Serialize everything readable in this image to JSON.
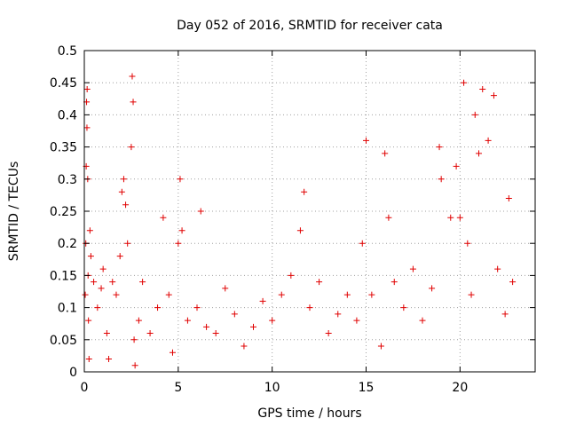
{
  "chart_data": {
    "type": "scatter",
    "title": "Day 052 of 2016, SRMTID for receiver cata",
    "xlabel": "GPS time / hours",
    "ylabel": "SRMTID / TECUs",
    "xlim": [
      0,
      24
    ],
    "ylim": [
      0,
      0.5
    ],
    "x_ticks": [
      0,
      5,
      10,
      15,
      20
    ],
    "x_tick_labels": [
      "0",
      "5",
      "10",
      "15",
      "20"
    ],
    "y_ticks": [
      0,
      0.05,
      0.1,
      0.15,
      0.2,
      0.25,
      0.3,
      0.35,
      0.4,
      0.45,
      0.5
    ],
    "y_tick_labels": [
      "0",
      "0.05",
      "0.1",
      "0.15",
      "0.2",
      "0.25",
      "0.3",
      "0.35",
      "0.4",
      "0.45",
      "0.5"
    ],
    "grid": true,
    "marker": "+",
    "marker_color": "#e00000",
    "series": [
      {
        "name": "SRMTID",
        "sample_points": [
          [
            0.05,
            0.12
          ],
          [
            0.08,
            0.2
          ],
          [
            0.1,
            0.32
          ],
          [
            0.12,
            0.42
          ],
          [
            0.14,
            0.38
          ],
          [
            0.15,
            0.44
          ],
          [
            0.18,
            0.3
          ],
          [
            0.2,
            0.15
          ],
          [
            0.22,
            0.08
          ],
          [
            0.25,
            0.02
          ],
          [
            0.3,
            0.22
          ],
          [
            0.35,
            0.18
          ],
          [
            0.5,
            0.14
          ],
          [
            0.7,
            0.1
          ],
          [
            0.9,
            0.13
          ],
          [
            1.0,
            0.16
          ],
          [
            1.2,
            0.06
          ],
          [
            1.3,
            0.02
          ],
          [
            1.5,
            0.14
          ],
          [
            1.7,
            0.12
          ],
          [
            1.9,
            0.18
          ],
          [
            2.0,
            0.28
          ],
          [
            2.1,
            0.3
          ],
          [
            2.2,
            0.26
          ],
          [
            2.3,
            0.2
          ],
          [
            2.5,
            0.35
          ],
          [
            2.55,
            0.46
          ],
          [
            2.6,
            0.42
          ],
          [
            2.65,
            0.05
          ],
          [
            2.7,
            0.01
          ],
          [
            2.9,
            0.08
          ],
          [
            3.1,
            0.14
          ],
          [
            3.5,
            0.06
          ],
          [
            3.9,
            0.1
          ],
          [
            4.2,
            0.24
          ],
          [
            4.5,
            0.12
          ],
          [
            4.7,
            0.03
          ],
          [
            5.0,
            0.2
          ],
          [
            5.1,
            0.3
          ],
          [
            5.2,
            0.22
          ],
          [
            5.5,
            0.08
          ],
          [
            6.0,
            0.1
          ],
          [
            6.2,
            0.25
          ],
          [
            6.5,
            0.07
          ],
          [
            7.0,
            0.06
          ],
          [
            7.5,
            0.13
          ],
          [
            8.0,
            0.09
          ],
          [
            8.5,
            0.04
          ],
          [
            9.0,
            0.07
          ],
          [
            9.5,
            0.11
          ],
          [
            10.0,
            0.08
          ],
          [
            10.5,
            0.12
          ],
          [
            11.0,
            0.15
          ],
          [
            11.5,
            0.22
          ],
          [
            11.7,
            0.28
          ],
          [
            12.0,
            0.1
          ],
          [
            12.5,
            0.14
          ],
          [
            13.0,
            0.06
          ],
          [
            13.5,
            0.09
          ],
          [
            14.0,
            0.12
          ],
          [
            14.5,
            0.08
          ],
          [
            14.8,
            0.2
          ],
          [
            15.0,
            0.36
          ],
          [
            15.3,
            0.12
          ],
          [
            15.8,
            0.04
          ],
          [
            16.0,
            0.34
          ],
          [
            16.2,
            0.24
          ],
          [
            16.5,
            0.14
          ],
          [
            17.0,
            0.1
          ],
          [
            17.5,
            0.16
          ],
          [
            18.0,
            0.08
          ],
          [
            18.5,
            0.13
          ],
          [
            18.9,
            0.35
          ],
          [
            19.0,
            0.3
          ],
          [
            19.5,
            0.24
          ],
          [
            19.8,
            0.32
          ],
          [
            20.0,
            0.24
          ],
          [
            20.2,
            0.45
          ],
          [
            20.4,
            0.2
          ],
          [
            20.6,
            0.12
          ],
          [
            20.8,
            0.4
          ],
          [
            21.0,
            0.34
          ],
          [
            21.2,
            0.44
          ],
          [
            21.5,
            0.36
          ],
          [
            21.8,
            0.43
          ],
          [
            22.0,
            0.16
          ],
          [
            22.4,
            0.09
          ],
          [
            22.6,
            0.27
          ],
          [
            22.8,
            0.14
          ]
        ]
      }
    ]
  }
}
